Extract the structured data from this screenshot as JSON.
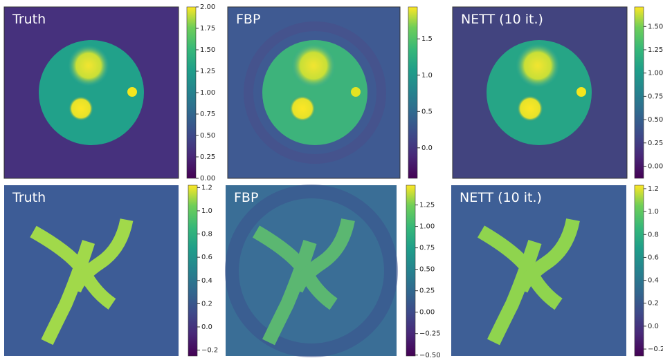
{
  "panels": [
    {
      "label": "Truth",
      "colorbar": {
        "lim": [
          0,
          2
        ],
        "ticks": [
          {
            "value": 0,
            "label": "0.00"
          },
          {
            "value": 0.25,
            "label": "0.25"
          },
          {
            "value": 0.5,
            "label": "0.50"
          },
          {
            "value": 0.75,
            "label": "0.75"
          },
          {
            "value": 1,
            "label": "1.00"
          },
          {
            "value": 1.25,
            "label": "1.25"
          },
          {
            "value": 1.5,
            "label": "1.50"
          },
          {
            "value": 1.75,
            "label": "1.75"
          },
          {
            "value": 2,
            "label": "2.00"
          }
        ]
      }
    },
    {
      "label": "FBP",
      "colorbar": {
        "lim": [
          -0.42,
          1.94
        ],
        "ticks": [
          {
            "value": 0,
            "label": "0.0"
          },
          0.5,
          {
            "value": 1,
            "label": "1.0"
          },
          1.5
        ]
      }
    },
    {
      "label": "NETT (10 it.)",
      "colorbar": {
        "lim": [
          -0.13,
          1.71
        ],
        "ticks": [
          {
            "value": 0,
            "label": "0.00"
          },
          0.25,
          {
            "value": 0.5,
            "label": "0.50"
          },
          0.75,
          {
            "value": 1,
            "label": "1.00"
          },
          1.25,
          {
            "value": 1.5,
            "label": "1.50"
          }
        ]
      }
    },
    {
      "label": "Truth",
      "colorbar": {
        "lim": [
          -0.25,
          1.22
        ],
        "ticks": [
          {
            "value": -0.2,
            "label": "−0.2"
          },
          {
            "value": 0,
            "label": "0.0"
          },
          0.2,
          0.4,
          0.6,
          0.8,
          {
            "value": 1,
            "label": "1.0"
          },
          1.2
        ]
      }
    },
    {
      "label": "FBP",
      "colorbar": {
        "lim": [
          -0.51,
          1.48
        ],
        "ticks": [
          {
            "value": -0.5,
            "label": "−0.50"
          },
          {
            "value": -0.25,
            "label": "−0.25"
          },
          {
            "value": 0,
            "label": "0.00"
          },
          0.25,
          {
            "value": 0.5,
            "label": "0.50"
          },
          0.75,
          {
            "value": 1,
            "label": "1.00"
          },
          1.25
        ]
      }
    },
    {
      "label": "NETT (10 it.)",
      "colorbar": {
        "lim": [
          -0.26,
          1.23
        ],
        "ticks": [
          {
            "value": -0.2,
            "label": "−0.2"
          },
          {
            "value": 0,
            "label": "0.0"
          },
          0.2,
          0.4,
          0.6,
          0.8,
          {
            "value": 1,
            "label": "1.0"
          },
          1.2
        ]
      }
    }
  ]
}
